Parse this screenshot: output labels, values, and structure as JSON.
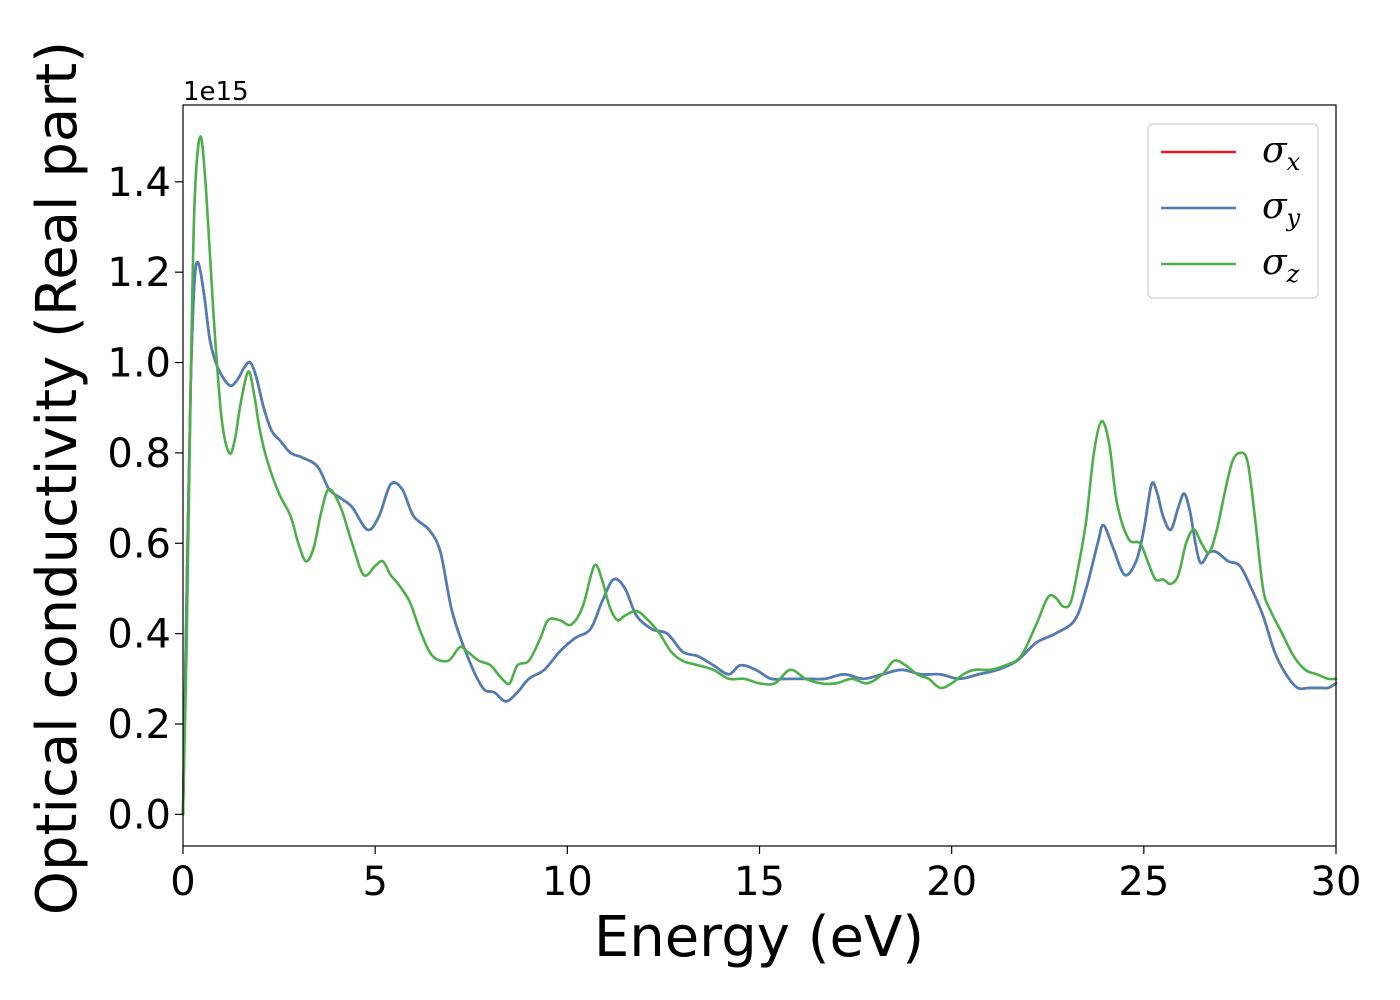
{
  "chart_data": {
    "type": "line",
    "title": "",
    "xlabel": "Energy (eV)",
    "ylabel": "Optical conductivity (Real part)",
    "y_offset_label": "1e15",
    "xlim": [
      0,
      30
    ],
    "ylim": [
      -0.07,
      1.57
    ],
    "xticks": [
      0,
      5,
      10,
      15,
      20,
      25,
      30
    ],
    "xtick_labels": [
      "0",
      "5",
      "10",
      "15",
      "20",
      "25",
      "30"
    ],
    "yticks": [
      0.0,
      0.2,
      0.4,
      0.6,
      0.8,
      1.0,
      1.2,
      1.4
    ],
    "ytick_labels": [
      "0.0",
      "0.2",
      "0.4",
      "0.6",
      "0.8",
      "1.0",
      "1.2",
      "1.4"
    ],
    "grid": false,
    "legend_position": "top-right",
    "series": [
      {
        "name": "σx",
        "symbol": "σ",
        "subscript": "x",
        "color": "#e41a1c",
        "x": [
          0,
          0.1,
          0.2,
          0.3,
          0.4,
          0.55,
          0.7,
          0.9,
          1.2,
          1.4,
          1.6,
          1.75,
          1.9,
          2.1,
          2.3,
          2.5,
          2.8,
          3.1,
          3.5,
          3.8,
          4.1,
          4.4,
          4.8,
          5.1,
          5.4,
          5.7,
          6.0,
          6.4,
          6.7,
          7.0,
          7.4,
          7.8,
          8.1,
          8.4,
          8.7,
          9.0,
          9.4,
          9.8,
          10.2,
          10.6,
          10.9,
          11.2,
          11.5,
          11.8,
          12.2,
          12.6,
          13.0,
          13.4,
          13.8,
          14.2,
          14.5,
          14.9,
          15.3,
          15.7,
          16.2,
          16.7,
          17.2,
          17.7,
          18.2,
          18.7,
          19.2,
          19.7,
          20.2,
          20.7,
          21.2,
          21.7,
          22.2,
          22.7,
          23.2,
          23.5,
          23.8,
          23.95,
          24.2,
          24.5,
          24.8,
          25.0,
          25.2,
          25.35,
          25.5,
          25.7,
          25.9,
          26.05,
          26.2,
          26.45,
          26.7,
          26.9,
          27.2,
          27.5,
          27.8,
          28.1,
          28.4,
          28.7,
          29.0,
          29.3,
          29.6,
          29.8,
          30.0
        ],
        "y": [
          0,
          0.5,
          0.95,
          1.18,
          1.22,
          1.15,
          1.05,
          0.99,
          0.95,
          0.96,
          0.99,
          1.0,
          0.97,
          0.9,
          0.85,
          0.83,
          0.8,
          0.79,
          0.77,
          0.72,
          0.7,
          0.68,
          0.63,
          0.66,
          0.73,
          0.72,
          0.66,
          0.63,
          0.58,
          0.45,
          0.35,
          0.28,
          0.27,
          0.25,
          0.27,
          0.3,
          0.32,
          0.36,
          0.39,
          0.41,
          0.47,
          0.52,
          0.5,
          0.44,
          0.41,
          0.4,
          0.36,
          0.35,
          0.33,
          0.31,
          0.33,
          0.32,
          0.3,
          0.3,
          0.3,
          0.3,
          0.31,
          0.3,
          0.31,
          0.32,
          0.31,
          0.31,
          0.3,
          0.31,
          0.32,
          0.34,
          0.38,
          0.4,
          0.43,
          0.5,
          0.6,
          0.64,
          0.59,
          0.53,
          0.56,
          0.63,
          0.73,
          0.71,
          0.66,
          0.63,
          0.68,
          0.71,
          0.67,
          0.56,
          0.58,
          0.58,
          0.56,
          0.55,
          0.5,
          0.44,
          0.36,
          0.31,
          0.28,
          0.28,
          0.28,
          0.28,
          0.29
        ]
      },
      {
        "name": "σy",
        "symbol": "σ",
        "subscript": "y",
        "color": "#4a7fb8",
        "x": [
          0,
          0.1,
          0.2,
          0.3,
          0.4,
          0.55,
          0.7,
          0.9,
          1.2,
          1.4,
          1.6,
          1.75,
          1.9,
          2.1,
          2.3,
          2.5,
          2.8,
          3.1,
          3.5,
          3.8,
          4.1,
          4.4,
          4.8,
          5.1,
          5.4,
          5.7,
          6.0,
          6.4,
          6.7,
          7.0,
          7.4,
          7.8,
          8.1,
          8.4,
          8.7,
          9.0,
          9.4,
          9.8,
          10.2,
          10.6,
          10.9,
          11.2,
          11.5,
          11.8,
          12.2,
          12.6,
          13.0,
          13.4,
          13.8,
          14.2,
          14.5,
          14.9,
          15.3,
          15.7,
          16.2,
          16.7,
          17.2,
          17.7,
          18.2,
          18.7,
          19.2,
          19.7,
          20.2,
          20.7,
          21.2,
          21.7,
          22.2,
          22.7,
          23.2,
          23.5,
          23.8,
          23.95,
          24.2,
          24.5,
          24.8,
          25.0,
          25.2,
          25.35,
          25.5,
          25.7,
          25.9,
          26.05,
          26.2,
          26.45,
          26.7,
          26.9,
          27.2,
          27.5,
          27.8,
          28.1,
          28.4,
          28.7,
          29.0,
          29.3,
          29.6,
          29.8,
          30.0
        ],
        "y": [
          0,
          0.5,
          0.95,
          1.18,
          1.22,
          1.15,
          1.05,
          0.99,
          0.95,
          0.96,
          0.99,
          1.0,
          0.97,
          0.9,
          0.85,
          0.83,
          0.8,
          0.79,
          0.77,
          0.72,
          0.7,
          0.68,
          0.63,
          0.66,
          0.73,
          0.72,
          0.66,
          0.63,
          0.58,
          0.45,
          0.35,
          0.28,
          0.27,
          0.25,
          0.27,
          0.3,
          0.32,
          0.36,
          0.39,
          0.41,
          0.47,
          0.52,
          0.5,
          0.44,
          0.41,
          0.4,
          0.36,
          0.35,
          0.33,
          0.31,
          0.33,
          0.32,
          0.3,
          0.3,
          0.3,
          0.3,
          0.31,
          0.3,
          0.31,
          0.32,
          0.31,
          0.31,
          0.3,
          0.31,
          0.32,
          0.34,
          0.38,
          0.4,
          0.43,
          0.5,
          0.6,
          0.64,
          0.59,
          0.53,
          0.56,
          0.63,
          0.73,
          0.71,
          0.66,
          0.63,
          0.68,
          0.71,
          0.67,
          0.56,
          0.58,
          0.58,
          0.56,
          0.55,
          0.5,
          0.44,
          0.36,
          0.31,
          0.28,
          0.28,
          0.28,
          0.28,
          0.29
        ]
      },
      {
        "name": "σz",
        "symbol": "σ",
        "subscript": "z",
        "color": "#4daf4a",
        "x": [
          0,
          0.1,
          0.2,
          0.3,
          0.45,
          0.6,
          0.8,
          1.0,
          1.2,
          1.35,
          1.5,
          1.7,
          1.85,
          2.0,
          2.2,
          2.5,
          2.8,
          3.0,
          3.2,
          3.4,
          3.6,
          3.8,
          4.1,
          4.4,
          4.7,
          5.0,
          5.2,
          5.4,
          5.6,
          5.9,
          6.2,
          6.5,
          6.9,
          7.2,
          7.4,
          7.7,
          8.0,
          8.3,
          8.5,
          8.7,
          9.0,
          9.3,
          9.5,
          9.8,
          10.1,
          10.4,
          10.7,
          10.9,
          11.1,
          11.3,
          11.5,
          11.8,
          12.1,
          12.4,
          12.7,
          13.0,
          13.4,
          13.8,
          14.2,
          14.6,
          15.0,
          15.4,
          15.8,
          16.2,
          16.6,
          17.0,
          17.4,
          17.8,
          18.2,
          18.5,
          18.8,
          19.1,
          19.4,
          19.7,
          20.0,
          20.3,
          20.6,
          21.0,
          21.4,
          21.8,
          22.2,
          22.5,
          22.7,
          22.9,
          23.1,
          23.3,
          23.5,
          23.7,
          23.9,
          24.1,
          24.3,
          24.6,
          24.9,
          25.1,
          25.3,
          25.5,
          25.7,
          25.9,
          26.1,
          26.3,
          26.5,
          26.7,
          26.9,
          27.1,
          27.3,
          27.5,
          27.7,
          27.9,
          28.1,
          28.3,
          28.6,
          28.9,
          29.2,
          29.5,
          29.8,
          30.0
        ],
        "y": [
          0,
          0.4,
          0.95,
          1.35,
          1.5,
          1.38,
          1.1,
          0.88,
          0.8,
          0.83,
          0.91,
          0.98,
          0.93,
          0.85,
          0.78,
          0.71,
          0.66,
          0.6,
          0.56,
          0.59,
          0.67,
          0.72,
          0.68,
          0.6,
          0.53,
          0.55,
          0.56,
          0.53,
          0.51,
          0.47,
          0.4,
          0.35,
          0.34,
          0.37,
          0.36,
          0.34,
          0.33,
          0.3,
          0.29,
          0.33,
          0.34,
          0.39,
          0.43,
          0.43,
          0.42,
          0.46,
          0.55,
          0.52,
          0.46,
          0.43,
          0.44,
          0.45,
          0.43,
          0.4,
          0.36,
          0.34,
          0.33,
          0.32,
          0.3,
          0.3,
          0.29,
          0.29,
          0.32,
          0.3,
          0.29,
          0.29,
          0.3,
          0.29,
          0.31,
          0.34,
          0.33,
          0.31,
          0.3,
          0.28,
          0.29,
          0.31,
          0.32,
          0.32,
          0.33,
          0.35,
          0.42,
          0.48,
          0.48,
          0.46,
          0.47,
          0.55,
          0.65,
          0.8,
          0.87,
          0.82,
          0.69,
          0.61,
          0.6,
          0.56,
          0.52,
          0.52,
          0.51,
          0.53,
          0.6,
          0.63,
          0.6,
          0.58,
          0.63,
          0.71,
          0.78,
          0.8,
          0.78,
          0.65,
          0.5,
          0.45,
          0.4,
          0.35,
          0.32,
          0.31,
          0.3,
          0.3
        ]
      }
    ]
  }
}
